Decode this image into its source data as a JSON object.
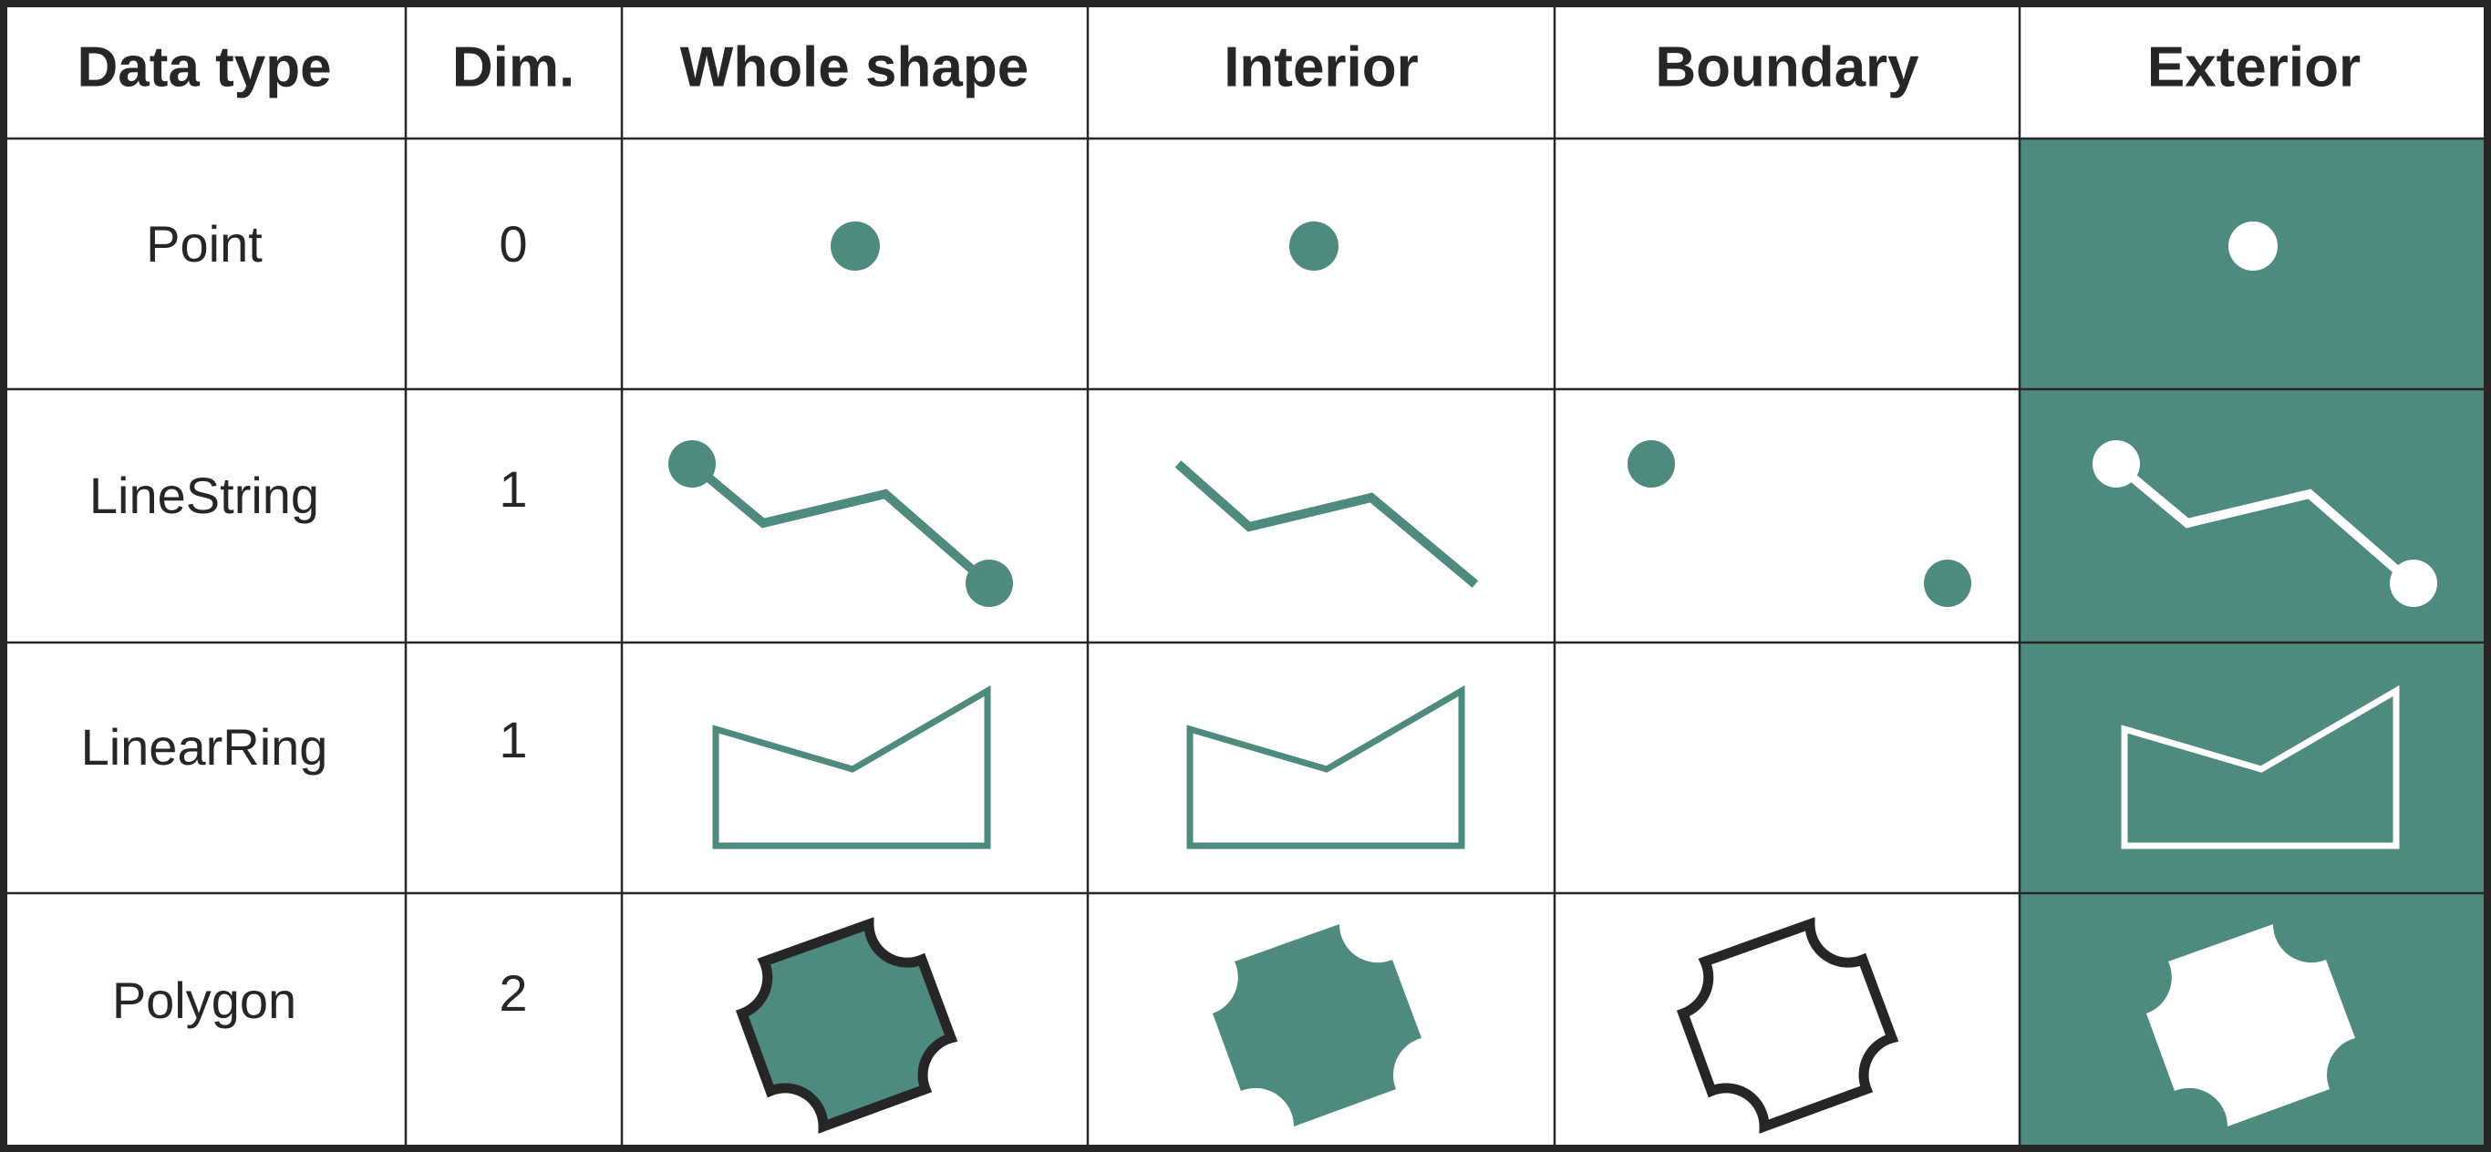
{
  "table": {
    "headers": {
      "data_type": "Data type",
      "dim": "Dim.",
      "whole_shape": "Whole shape",
      "interior": "Interior",
      "boundary": "Boundary",
      "exterior": "Exterior"
    },
    "rows": [
      {
        "data_type": "Point",
        "dim": "0"
      },
      {
        "data_type": "LineString",
        "dim": "1"
      },
      {
        "data_type": "LinearRing",
        "dim": "1"
      },
      {
        "data_type": "Polygon",
        "dim": "2"
      }
    ]
  },
  "colors": {
    "accent": "#4e8a7e",
    "border": "#262626",
    "text": "#262626",
    "background": "#ffffff",
    "inverse": "#ffffff"
  }
}
